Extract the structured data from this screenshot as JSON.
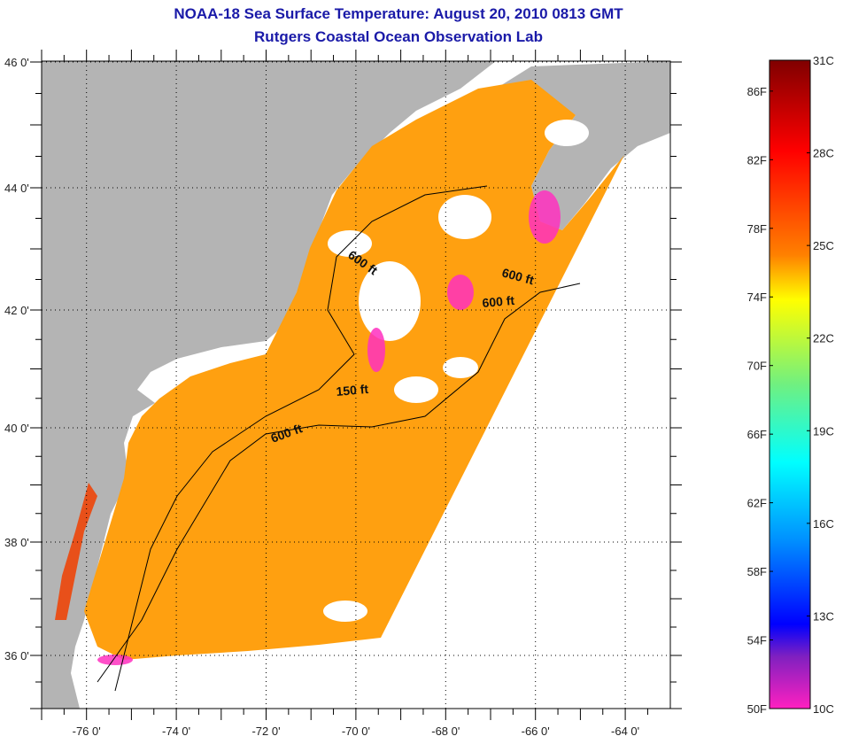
{
  "header": {
    "title": "NOAA-18 Sea Surface Temperature:  August 20, 2010 0813 GMT",
    "subtitle": "Rutgers Coastal Ocean Observation Lab"
  },
  "map": {
    "lon_range": [
      -77,
      -63
    ],
    "lat_range": [
      35,
      46
    ],
    "lon_ticks": [
      {
        "v": -76,
        "label": "-76 0'"
      },
      {
        "v": -74,
        "label": "-74 0'"
      },
      {
        "v": -72,
        "label": "-72 0'"
      },
      {
        "v": -70,
        "label": "-70 0'"
      },
      {
        "v": -68,
        "label": "-68 0'"
      },
      {
        "v": -66,
        "label": "-66 0'"
      },
      {
        "v": -64,
        "label": "-64 0'"
      }
    ],
    "lat_ticks": [
      {
        "v": 46,
        "label": "46 0'"
      },
      {
        "v": 44,
        "label": "44 0'"
      },
      {
        "v": 42,
        "label": "42 0'"
      },
      {
        "v": 40,
        "label": "40 0'"
      },
      {
        "v": 38,
        "label": "38 0'"
      },
      {
        "v": 36,
        "label": "36 0'"
      }
    ],
    "contour_labels": [
      "600 ft",
      "600 ft",
      "600 ft",
      "150 ft",
      "600 ft"
    ],
    "colors": {
      "land": "#b4b4b4",
      "no_data": "#ffffff",
      "title": "#1a1aa8"
    }
  },
  "colorbar": {
    "fahrenheit": [
      {
        "v": 86,
        "label": "86F"
      },
      {
        "v": 82,
        "label": "82F"
      },
      {
        "v": 78,
        "label": "78F"
      },
      {
        "v": 74,
        "label": "74F"
      },
      {
        "v": 70,
        "label": "70F"
      },
      {
        "v": 66,
        "label": "66F"
      },
      {
        "v": 62,
        "label": "62F"
      },
      {
        "v": 58,
        "label": "58F"
      },
      {
        "v": 54,
        "label": "54F"
      },
      {
        "v": 50,
        "label": "50F"
      }
    ],
    "celsius": [
      {
        "v": 31,
        "label": "31C"
      },
      {
        "v": 28,
        "label": "28C"
      },
      {
        "v": 25,
        "label": "25C"
      },
      {
        "v": 22,
        "label": "22C"
      },
      {
        "v": 19,
        "label": "19C"
      },
      {
        "v": 16,
        "label": "16C"
      },
      {
        "v": 13,
        "label": "13C"
      },
      {
        "v": 10,
        "label": "10C"
      }
    ],
    "range_c": [
      10,
      31
    ]
  }
}
